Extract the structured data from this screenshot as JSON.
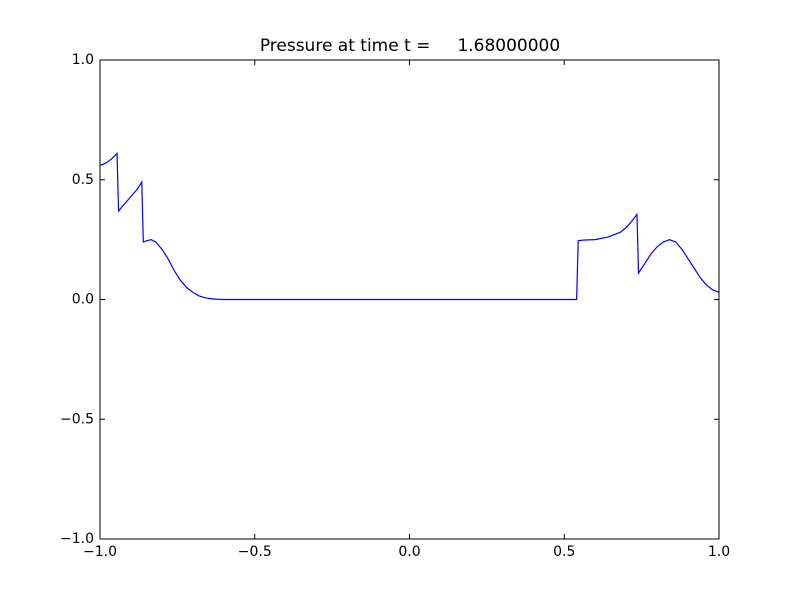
{
  "chart_data": {
    "type": "line",
    "title": "Pressure at time t =     1.68000000",
    "x": [
      -1,
      -0.98,
      -0.96,
      -0.945,
      -0.94,
      -0.92,
      -0.9,
      -0.88,
      -0.865,
      -0.86,
      -0.85,
      -0.835,
      -0.82,
      -0.8,
      -0.78,
      -0.76,
      -0.74,
      -0.72,
      -0.7,
      -0.68,
      -0.66,
      -0.64,
      -0.62,
      -0.6,
      -0.55,
      0,
      0.54,
      0.545,
      0.56,
      0.6,
      0.64,
      0.68,
      0.7,
      0.72,
      0.735,
      0.74,
      0.76,
      0.78,
      0.8,
      0.82,
      0.84,
      0.86,
      0.88,
      0.9,
      0.92,
      0.94,
      0.96,
      0.98,
      1.0
    ],
    "series": [
      {
        "color": "#0000ff",
        "values": [
          0.56,
          0.57,
          0.59,
          0.61,
          0.37,
          0.4,
          0.43,
          0.46,
          0.49,
          0.24,
          0.245,
          0.25,
          0.24,
          0.21,
          0.17,
          0.12,
          0.08,
          0.05,
          0.03,
          0.015,
          0.007,
          0.003,
          0.001,
          0,
          0,
          0,
          0,
          0.245,
          0.248,
          0.25,
          0.26,
          0.28,
          0.3,
          0.33,
          0.355,
          0.11,
          0.15,
          0.19,
          0.22,
          0.24,
          0.25,
          0.24,
          0.21,
          0.17,
          0.13,
          0.09,
          0.06,
          0.04,
          0.03
        ]
      }
    ],
    "xlim": [
      -1,
      1
    ],
    "xticks": [
      {
        "value": -1,
        "label": "−1.0"
      },
      {
        "value": -0.5,
        "label": "−0.5"
      },
      {
        "value": 0,
        "label": "0.0"
      },
      0.5,
      {
        "value": 1,
        "label": "1.0"
      }
    ],
    "ylim": [
      -1,
      1
    ],
    "yticks": [
      {
        "value": -1,
        "label": "−1.0"
      },
      {
        "value": -0.5,
        "label": "−0.5"
      },
      {
        "value": 0,
        "label": "0.0"
      },
      0.5,
      {
        "value": 1,
        "label": "1.0"
      }
    ],
    "grid": false
  }
}
